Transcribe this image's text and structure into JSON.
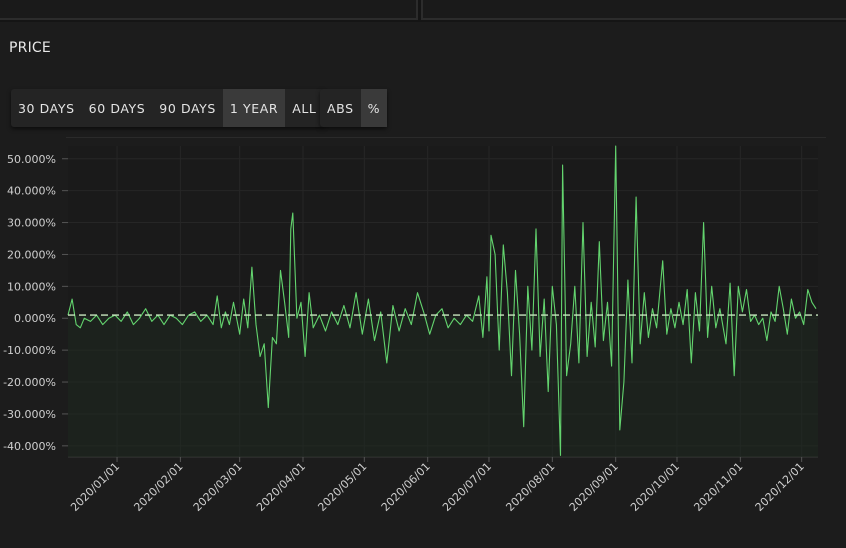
{
  "section": {
    "title": "PRICE"
  },
  "range_buttons": [
    {
      "label": "30 DAYS",
      "active": false
    },
    {
      "label": "60 DAYS",
      "active": false
    },
    {
      "label": "90 DAYS",
      "active": false
    },
    {
      "label": "1 YEAR",
      "active": true
    },
    {
      "label": "ALL",
      "active": false
    }
  ],
  "mode_buttons": [
    {
      "label": "ABS",
      "active": false
    },
    {
      "label": "%",
      "active": true
    }
  ],
  "colors": {
    "line": "#63d46e",
    "baseline": "#c9e8c0",
    "area": "#1f2a20"
  },
  "chart_data": {
    "type": "line",
    "y_tick_labels": [
      "50.000%",
      "40.000%",
      "30.000%",
      "20.000%",
      "10.000%",
      "0.000%",
      "-10.000%",
      "-20.000%",
      "-30.000%",
      "-40.000%"
    ],
    "y_ticks": [
      50,
      40,
      30,
      20,
      10,
      0,
      -10,
      -20,
      -30,
      -40
    ],
    "ylim": [
      -43.5,
      54
    ],
    "x_tick_labels": [
      "2020/01/01",
      "2020/02/01",
      "2020/03/01",
      "2020/04/01",
      "2020/05/01",
      "2020/06/01",
      "2020/07/01",
      "2020/08/01",
      "2020/09/01",
      "2020/10/01",
      "2020/11/01",
      "2020/12/01"
    ],
    "xlim": [
      "2019-12-08",
      "2020-12-09"
    ],
    "baseline": 1.0,
    "grid": true,
    "series": [
      {
        "points": [
          [
            "2019-12-08",
            1
          ],
          [
            "2019-12-10",
            6
          ],
          [
            "2019-12-12",
            -2
          ],
          [
            "2019-12-14",
            -3
          ],
          [
            "2019-12-16",
            0
          ],
          [
            "2019-12-19",
            -1
          ],
          [
            "2019-12-22",
            1
          ],
          [
            "2019-12-25",
            -2
          ],
          [
            "2019-12-28",
            0
          ],
          [
            "2019-12-31",
            1
          ],
          [
            "2020-01-03",
            -1
          ],
          [
            "2020-01-06",
            2
          ],
          [
            "2020-01-09",
            -2
          ],
          [
            "2020-01-12",
            0
          ],
          [
            "2020-01-15",
            3
          ],
          [
            "2020-01-18",
            -1
          ],
          [
            "2020-01-21",
            1
          ],
          [
            "2020-01-24",
            -2
          ],
          [
            "2020-01-27",
            1
          ],
          [
            "2020-01-30",
            0
          ],
          [
            "2020-02-02",
            -2
          ],
          [
            "2020-02-05",
            1
          ],
          [
            "2020-02-08",
            2
          ],
          [
            "2020-02-11",
            -1
          ],
          [
            "2020-02-14",
            1
          ],
          [
            "2020-02-17",
            -2
          ],
          [
            "2020-02-19",
            7
          ],
          [
            "2020-02-21",
            -3
          ],
          [
            "2020-02-23",
            2
          ],
          [
            "2020-02-25",
            -2
          ],
          [
            "2020-02-27",
            5
          ],
          [
            "2020-03-01",
            -5
          ],
          [
            "2020-03-03",
            6
          ],
          [
            "2020-03-05",
            -3
          ],
          [
            "2020-03-07",
            16
          ],
          [
            "2020-03-09",
            -2
          ],
          [
            "2020-03-11",
            -12
          ],
          [
            "2020-03-13",
            -8
          ],
          [
            "2020-03-15",
            -28
          ],
          [
            "2020-03-17",
            -6
          ],
          [
            "2020-03-19",
            -8
          ],
          [
            "2020-03-21",
            15
          ],
          [
            "2020-03-23",
            5
          ],
          [
            "2020-03-25",
            -6
          ],
          [
            "2020-03-26",
            28
          ],
          [
            "2020-03-27",
            33
          ],
          [
            "2020-03-29",
            0
          ],
          [
            "2020-03-31",
            5
          ],
          [
            "2020-04-02",
            -12
          ],
          [
            "2020-04-04",
            8
          ],
          [
            "2020-04-06",
            -3
          ],
          [
            "2020-04-09",
            1
          ],
          [
            "2020-04-12",
            -4
          ],
          [
            "2020-04-15",
            2
          ],
          [
            "2020-04-18",
            -2
          ],
          [
            "2020-04-21",
            4
          ],
          [
            "2020-04-24",
            -3
          ],
          [
            "2020-04-27",
            8
          ],
          [
            "2020-04-30",
            -5
          ],
          [
            "2020-05-03",
            6
          ],
          [
            "2020-05-06",
            -7
          ],
          [
            "2020-05-09",
            2
          ],
          [
            "2020-05-12",
            -14
          ],
          [
            "2020-05-15",
            4
          ],
          [
            "2020-05-18",
            -4
          ],
          [
            "2020-05-21",
            3
          ],
          [
            "2020-05-24",
            -2
          ],
          [
            "2020-05-27",
            8
          ],
          [
            "2020-05-30",
            2
          ],
          [
            "2020-06-02",
            -5
          ],
          [
            "2020-06-05",
            1
          ],
          [
            "2020-06-08",
            3
          ],
          [
            "2020-06-11",
            -3
          ],
          [
            "2020-06-14",
            0
          ],
          [
            "2020-06-17",
            -2
          ],
          [
            "2020-06-20",
            1
          ],
          [
            "2020-06-23",
            -1
          ],
          [
            "2020-06-26",
            7
          ],
          [
            "2020-06-28",
            -6
          ],
          [
            "2020-06-30",
            13
          ],
          [
            "2020-07-01",
            -4
          ],
          [
            "2020-07-02",
            26
          ],
          [
            "2020-07-04",
            20
          ],
          [
            "2020-07-06",
            -10
          ],
          [
            "2020-07-08",
            23
          ],
          [
            "2020-07-10",
            8
          ],
          [
            "2020-07-12",
            -18
          ],
          [
            "2020-07-14",
            15
          ],
          [
            "2020-07-16",
            -5
          ],
          [
            "2020-07-18",
            -34
          ],
          [
            "2020-07-20",
            10
          ],
          [
            "2020-07-22",
            -10
          ],
          [
            "2020-07-24",
            28
          ],
          [
            "2020-07-26",
            -12
          ],
          [
            "2020-07-28",
            6
          ],
          [
            "2020-07-30",
            -23
          ],
          [
            "2020-08-01",
            10
          ],
          [
            "2020-08-03",
            -2
          ],
          [
            "2020-08-05",
            -43
          ],
          [
            "2020-08-06",
            48
          ],
          [
            "2020-08-08",
            -18
          ],
          [
            "2020-08-10",
            -8
          ],
          [
            "2020-08-12",
            10
          ],
          [
            "2020-08-14",
            -14
          ],
          [
            "2020-08-16",
            30
          ],
          [
            "2020-08-18",
            -12
          ],
          [
            "2020-08-20",
            5
          ],
          [
            "2020-08-22",
            -9
          ],
          [
            "2020-08-24",
            24
          ],
          [
            "2020-08-26",
            -7
          ],
          [
            "2020-08-28",
            5
          ],
          [
            "2020-08-30",
            -15
          ],
          [
            "2020-09-01",
            54
          ],
          [
            "2020-09-03",
            -35
          ],
          [
            "2020-09-05",
            -20
          ],
          [
            "2020-09-07",
            12
          ],
          [
            "2020-09-09",
            -14
          ],
          [
            "2020-09-11",
            38
          ],
          [
            "2020-09-13",
            -8
          ],
          [
            "2020-09-15",
            8
          ],
          [
            "2020-09-17",
            -6
          ],
          [
            "2020-09-19",
            3
          ],
          [
            "2020-09-21",
            -3
          ],
          [
            "2020-09-24",
            18
          ],
          [
            "2020-09-26",
            -5
          ],
          [
            "2020-09-28",
            3
          ],
          [
            "2020-09-30",
            -3
          ],
          [
            "2020-10-02",
            5
          ],
          [
            "2020-10-04",
            -2
          ],
          [
            "2020-10-06",
            9
          ],
          [
            "2020-10-08",
            -14
          ],
          [
            "2020-10-10",
            8
          ],
          [
            "2020-10-12",
            -4
          ],
          [
            "2020-10-14",
            30
          ],
          [
            "2020-10-16",
            -6
          ],
          [
            "2020-10-18",
            10
          ],
          [
            "2020-10-20",
            -3
          ],
          [
            "2020-10-22",
            3
          ],
          [
            "2020-10-25",
            -8
          ],
          [
            "2020-10-27",
            11
          ],
          [
            "2020-10-29",
            -18
          ],
          [
            "2020-10-31",
            10
          ],
          [
            "2020-11-02",
            2
          ],
          [
            "2020-11-04",
            9
          ],
          [
            "2020-11-06",
            -1
          ],
          [
            "2020-11-08",
            1
          ],
          [
            "2020-11-10",
            -2
          ],
          [
            "2020-11-12",
            0
          ],
          [
            "2020-11-14",
            -7
          ],
          [
            "2020-11-16",
            2
          ],
          [
            "2020-11-18",
            -1
          ],
          [
            "2020-11-20",
            10
          ],
          [
            "2020-11-22",
            3
          ],
          [
            "2020-11-24",
            -5
          ],
          [
            "2020-11-26",
            6
          ],
          [
            "2020-11-28",
            0
          ],
          [
            "2020-11-30",
            2
          ],
          [
            "2020-12-02",
            -2
          ],
          [
            "2020-12-04",
            9
          ],
          [
            "2020-12-06",
            5
          ],
          [
            "2020-12-08",
            3
          ]
        ]
      }
    ]
  }
}
